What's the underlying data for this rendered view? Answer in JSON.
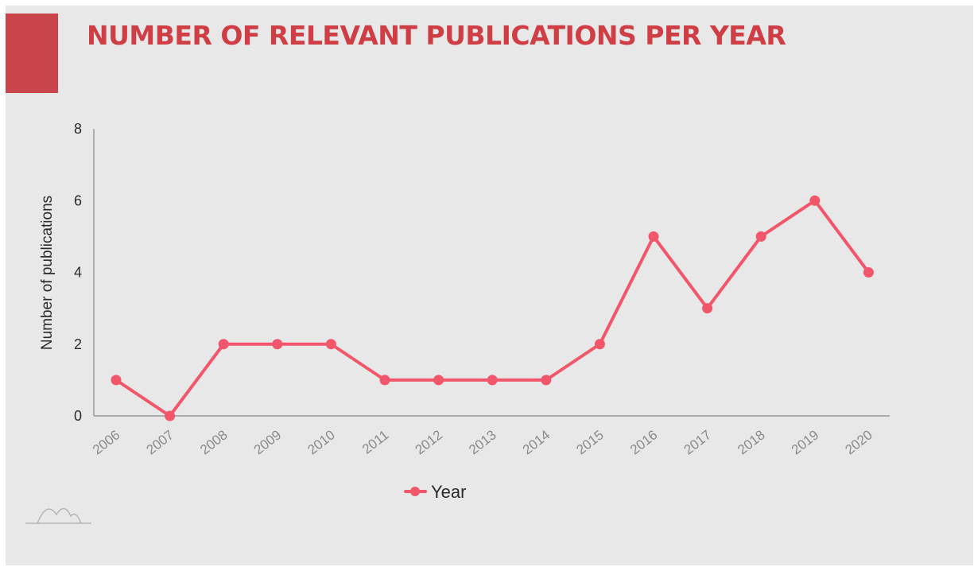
{
  "header": {
    "title": "NUMBER OF RELEVANT PUBLICATIONS PER YEAR"
  },
  "colors": {
    "accent": "#c9454b",
    "title": "#cf3e44",
    "series": "#f2566a",
    "background": "#e8e8e8"
  },
  "logo_icon": "mountain-logo-icon",
  "chart_data": {
    "type": "line",
    "title": "",
    "xlabel": "",
    "ylabel": "Number of publications",
    "ylim": [
      0,
      8
    ],
    "yticks": [
      "0",
      "2",
      "4",
      "6",
      "8"
    ],
    "grid": false,
    "legend_position": "bottom",
    "categories": [
      "2006",
      "2007",
      "2008",
      "2009",
      "2010",
      "2011",
      "2012",
      "2013",
      "2014",
      "2015",
      "2016",
      "2017",
      "2018",
      "2019",
      "2020"
    ],
    "series": [
      {
        "name": "Year",
        "color": "#f2566a",
        "values": [
          1,
          0,
          2,
          2,
          2,
          1,
          1,
          1,
          1,
          2,
          5,
          3,
          5,
          6,
          4
        ]
      }
    ]
  }
}
